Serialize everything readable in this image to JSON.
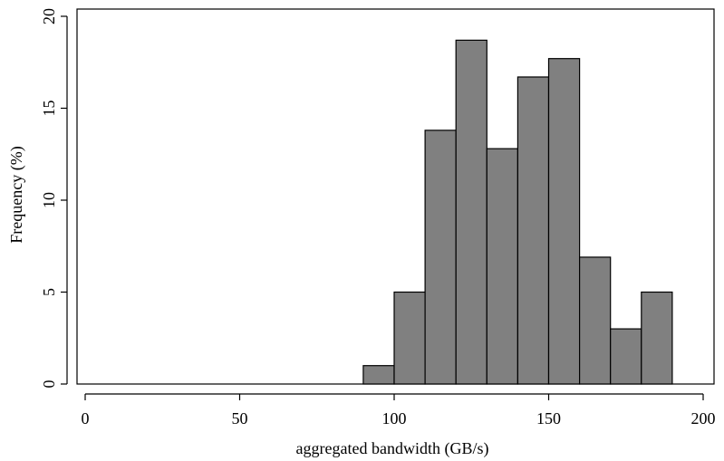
{
  "chart_data": {
    "type": "bar",
    "title": "",
    "xlabel": "aggregated bandwidth (GB/s)",
    "ylabel": "Frequency (%)",
    "xlim": [
      0,
      200
    ],
    "ylim": [
      0,
      20
    ],
    "x_ticks": [
      0,
      50,
      100,
      150,
      200
    ],
    "y_ticks": [
      0,
      5,
      10,
      15,
      20
    ],
    "bin_width": 10,
    "bins": [
      {
        "start": 90,
        "end": 100,
        "value": 1
      },
      {
        "start": 100,
        "end": 110,
        "value": 5
      },
      {
        "start": 110,
        "end": 120,
        "value": 13.8
      },
      {
        "start": 120,
        "end": 130,
        "value": 18.7
      },
      {
        "start": 130,
        "end": 140,
        "value": 12.8
      },
      {
        "start": 140,
        "end": 150,
        "value": 16.7
      },
      {
        "start": 150,
        "end": 160,
        "value": 17.7
      },
      {
        "start": 160,
        "end": 170,
        "value": 6.9
      },
      {
        "start": 170,
        "end": 180,
        "value": 3
      },
      {
        "start": 180,
        "end": 190,
        "value": 5
      }
    ],
    "bar_color": "#808080",
    "grid": false,
    "legend": "none"
  }
}
